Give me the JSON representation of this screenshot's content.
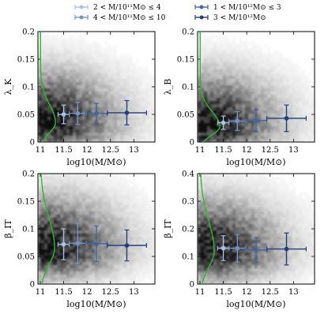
{
  "colors": {
    "series": [
      "#a9c1e4",
      "#7394c9",
      "#40679f",
      "#1f3f78"
    ],
    "fit_curve": "#2eb82e",
    "density": "#000000"
  },
  "legend": {
    "placement": "top",
    "entries": [
      "2 < M/10¹¹M⊙ ≤ 4",
      "4 < M/10¹¹M⊙ ≤ 10",
      "1 < M/10¹²M⊙ ≤ 3",
      "3 < M/10¹²M⊙"
    ]
  },
  "chart_data": [
    {
      "type": "scatter",
      "ylabel": "λ_K",
      "xlabel": "log10(M/M⊙)",
      "xlim": [
        10.95,
        13.45
      ],
      "ylim": [
        0,
        0.2
      ],
      "xticks": [
        "11",
        "11.5",
        "12",
        "12.5",
        "13"
      ],
      "xtick_values": [
        11,
        11.5,
        12,
        12.5,
        13
      ],
      "yticks": [
        "0",
        "0.05",
        "0.1",
        "0.15",
        "0.2"
      ],
      "ytick_values": [
        0,
        0.05,
        0.1,
        0.15,
        0.2
      ],
      "background": "2D density",
      "density_peak": [
        11.05,
        0.035
      ],
      "curve": {
        "peak": 0.035,
        "width": 0.018,
        "base": 11.0,
        "amp": 0.32
      },
      "points": [
        {
          "x": 11.5,
          "y": 0.05,
          "xerr": 0.12,
          "yerr": 0.017
        },
        {
          "x": 11.8,
          "y": 0.052,
          "xerr": 0.18,
          "yerr": 0.02
        },
        {
          "x": 12.2,
          "y": 0.052,
          "xerr": 0.23,
          "yerr": 0.018
        },
        {
          "x": 12.85,
          "y": 0.053,
          "xerr": 0.42,
          "yerr": 0.022
        }
      ]
    },
    {
      "type": "scatter",
      "ylabel": "λ_B",
      "xlabel": "log10(M/M⊙)",
      "xlim": [
        10.95,
        13.45
      ],
      "ylim": [
        0,
        0.2
      ],
      "xticks": [
        "11",
        "11.5",
        "12",
        "12.5",
        "13"
      ],
      "xtick_values": [
        11,
        11.5,
        12,
        12.5,
        13
      ],
      "yticks": [
        "0",
        "0.05",
        "0.1",
        "0.15",
        "0.2"
      ],
      "ytick_values": [
        0,
        0.05,
        0.1,
        0.15,
        0.2
      ],
      "background": "2D density",
      "density_peak": [
        11.05,
        0.03
      ],
      "curve": {
        "peak": 0.028,
        "width": 0.015,
        "base": 11.0,
        "amp": 0.42
      },
      "points": [
        {
          "x": 11.5,
          "y": 0.035,
          "xerr": 0.12,
          "yerr": 0.012
        },
        {
          "x": 11.8,
          "y": 0.038,
          "xerr": 0.18,
          "yerr": 0.017
        },
        {
          "x": 12.2,
          "y": 0.039,
          "xerr": 0.23,
          "yerr": 0.02
        },
        {
          "x": 12.85,
          "y": 0.043,
          "xerr": 0.42,
          "yerr": 0.024
        }
      ]
    },
    {
      "type": "scatter",
      "ylabel": "β_IT",
      "xlabel": "log10(M/M⊙)",
      "xlim": [
        10.95,
        13.45
      ],
      "ylim": [
        0,
        0.2
      ],
      "xticks": [
        "11",
        "11.5",
        "12",
        "12.5",
        "13"
      ],
      "xtick_values": [
        11,
        11.5,
        12,
        12.5,
        13
      ],
      "yticks": [
        "0",
        "0.05",
        "0.1",
        "0.15",
        "0.2"
      ],
      "ytick_values": [
        0,
        0.05,
        0.1,
        0.15,
        0.2
      ],
      "background": "2D density",
      "density_peak": [
        11.1,
        0.065
      ],
      "curve": {
        "peak": 0.065,
        "width": 0.03,
        "base": 11.0,
        "amp": 0.3
      },
      "points": [
        {
          "x": 11.5,
          "y": 0.072,
          "xerr": 0.12,
          "yerr": 0.028
        },
        {
          "x": 11.8,
          "y": 0.074,
          "xerr": 0.18,
          "yerr": 0.036
        },
        {
          "x": 12.2,
          "y": 0.073,
          "xerr": 0.23,
          "yerr": 0.032
        },
        {
          "x": 12.85,
          "y": 0.07,
          "xerr": 0.42,
          "yerr": 0.028
        }
      ]
    },
    {
      "type": "scatter",
      "ylabel": "β_IT",
      "xlabel": "log10(M/M⊙)",
      "xlim": [
        10.95,
        13.45
      ],
      "ylim": [
        0,
        0.4
      ],
      "xticks": [
        "11",
        "11.5",
        "12",
        "12.5",
        "13"
      ],
      "xtick_values": [
        11,
        11.5,
        12,
        12.5,
        13
      ],
      "yticks": [
        "0",
        "0.1",
        "0.2",
        "0.3",
        "0.4"
      ],
      "ytick_values": [
        0,
        0.1,
        0.2,
        0.3,
        0.4
      ],
      "background": "2D density",
      "density_peak": [
        11.1,
        0.12
      ],
      "curve": {
        "peak": 0.12,
        "width": 0.06,
        "base": 11.0,
        "amp": 0.3
      },
      "points": [
        {
          "x": 11.5,
          "y": 0.13,
          "xerr": 0.12,
          "yerr": 0.045
        },
        {
          "x": 11.8,
          "y": 0.13,
          "xerr": 0.18,
          "yerr": 0.05
        },
        {
          "x": 12.2,
          "y": 0.123,
          "xerr": 0.23,
          "yerr": 0.045
        },
        {
          "x": 12.85,
          "y": 0.127,
          "xerr": 0.42,
          "yerr": 0.058
        }
      ]
    }
  ]
}
